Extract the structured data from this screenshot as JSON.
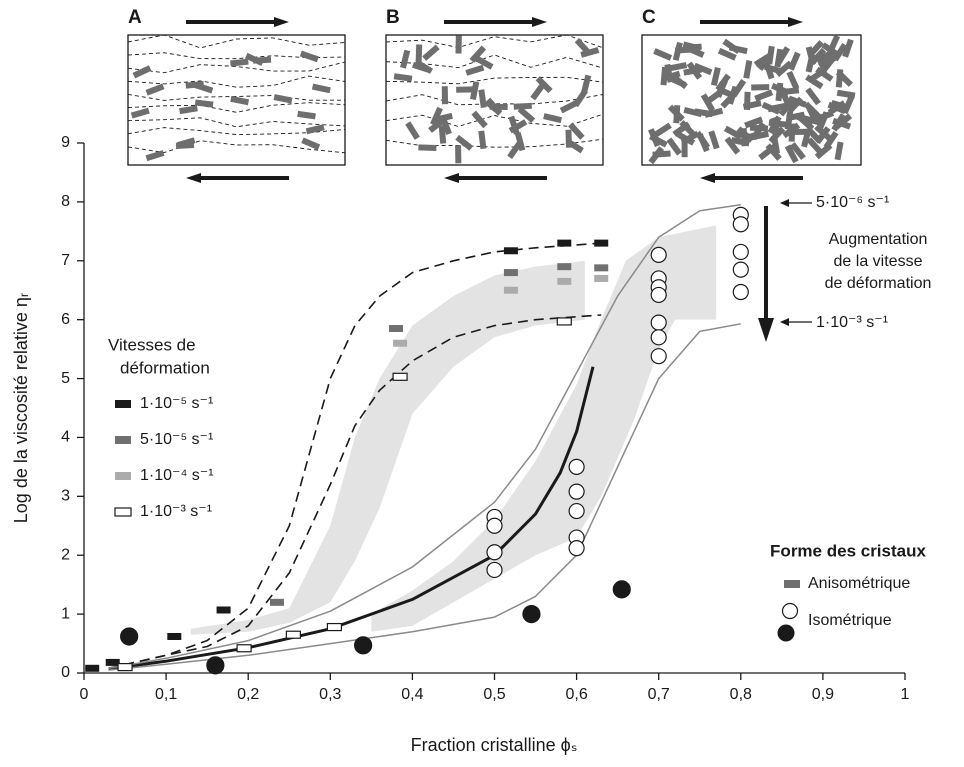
{
  "chart_data": {
    "type": "scatter",
    "x_label": "Fraction cristalline ϕₛ",
    "y_label": "Log de la viscosité relative ηᵣ",
    "xlim": [
      0,
      1
    ],
    "ylim": [
      0,
      9
    ],
    "xticks": [
      0,
      {
        "value": 0.1,
        "label": "0,1"
      },
      {
        "value": 0.2,
        "label": "0,2"
      },
      {
        "value": 0.3,
        "label": "0,3"
      },
      {
        "value": 0.4,
        "label": "0,4"
      },
      {
        "value": 0.5,
        "label": "0,5"
      },
      {
        "value": 0.6,
        "label": "0,6"
      },
      {
        "value": 0.7,
        "label": "0,7"
      },
      {
        "value": 0.8,
        "label": "0,8"
      },
      {
        "value": 0.9,
        "label": "0,9"
      },
      1
    ],
    "yticks": [
      0,
      1,
      2,
      3,
      4,
      5,
      6,
      7,
      8,
      9
    ],
    "rate_legend_title": [
      "Vitesses de",
      "déformation"
    ],
    "series": [
      {
        "name": "1·10⁻⁵ s⁻¹",
        "color": "#1a1a1a",
        "marker": "rect",
        "x": [
          0.01,
          0.035,
          0.11,
          0.17,
          0.52,
          0.585,
          0.63
        ],
        "y": [
          0.08,
          0.18,
          0.62,
          1.07,
          7.17,
          7.3,
          7.3
        ]
      },
      {
        "name": "5·10⁻⁵ s⁻¹",
        "color": "#707070",
        "marker": "rect",
        "x": [
          0.235,
          0.38,
          0.52,
          0.585,
          0.63
        ],
        "y": [
          1.2,
          5.85,
          6.8,
          6.9,
          6.88
        ]
      },
      {
        "name": "1·10⁻⁴ s⁻¹",
        "color": "#ababab",
        "marker": "rect",
        "x": [
          0.385,
          0.52,
          0.585,
          0.63
        ],
        "y": [
          5.6,
          6.5,
          6.65,
          6.7
        ]
      },
      {
        "name": "1·10⁻³ s⁻¹",
        "color": "#ffffff",
        "marker": "rect",
        "x": [
          0.05,
          0.195,
          0.255,
          0.305,
          0.385,
          0.585
        ],
        "y": [
          0.1,
          0.42,
          0.65,
          0.78,
          5.03,
          5.97
        ]
      },
      {
        "color": "#ffffff",
        "marker": "circle",
        "x": [
          0.5,
          0.5,
          0.5,
          0.5,
          0.6,
          0.6,
          0.6,
          0.6,
          0.6,
          0.7,
          0.7,
          0.7,
          0.7,
          0.7,
          0.7,
          0.7,
          0.8,
          0.8,
          0.8,
          0.8,
          0.8
        ],
        "y": [
          2.65,
          2.5,
          2.05,
          1.75,
          3.5,
          3.08,
          2.75,
          2.3,
          2.12,
          7.1,
          6.7,
          6.55,
          6.42,
          5.95,
          5.7,
          5.38,
          7.78,
          7.62,
          7.15,
          6.85,
          6.47
        ]
      },
      {
        "color": "#1a1a1a",
        "marker": "circle",
        "x": [
          0.055,
          0.16,
          0.34,
          0.545,
          0.655
        ],
        "y": [
          0.62,
          0.13,
          0.47,
          1.0,
          1.42
        ]
      }
    ],
    "lines": [
      {
        "style": "dashed",
        "color": "#1a1a1a",
        "x": [
          0.03,
          0.1,
          0.15,
          0.2,
          0.25,
          0.28,
          0.3,
          0.33,
          0.36,
          0.4,
          0.45,
          0.5,
          0.55,
          0.6,
          0.63
        ],
        "y": [
          0.08,
          0.3,
          0.55,
          1.1,
          2.5,
          4,
          5,
          5.9,
          6.4,
          6.8,
          7.0,
          7.15,
          7.22,
          7.27,
          7.3
        ]
      },
      {
        "style": "dashed",
        "color": "#1a1a1a",
        "x": [
          0.03,
          0.1,
          0.15,
          0.2,
          0.25,
          0.3,
          0.33,
          0.36,
          0.4,
          0.45,
          0.5,
          0.55,
          0.6,
          0.63
        ],
        "y": [
          0.08,
          0.3,
          0.45,
          0.8,
          1.7,
          3.2,
          4.2,
          4.8,
          5.3,
          5.7,
          5.9,
          6.0,
          6.05,
          6.08
        ]
      },
      {
        "style": "thick",
        "color": "#1a1a1a",
        "x": [
          0.03,
          0.1,
          0.2,
          0.3,
          0.4,
          0.5,
          0.55,
          0.58,
          0.6,
          0.62
        ],
        "y": [
          0.07,
          0.2,
          0.43,
          0.75,
          1.25,
          2.0,
          2.7,
          3.4,
          4.1,
          5.2
        ]
      },
      {
        "style": "thin",
        "color": "#8a8a8a",
        "x": [
          0.03,
          0.1,
          0.2,
          0.3,
          0.4,
          0.5,
          0.55,
          0.6,
          0.65,
          0.7,
          0.75,
          0.8
        ],
        "y": [
          0.08,
          0.25,
          0.55,
          1.05,
          1.8,
          2.9,
          3.8,
          5.1,
          6.4,
          7.4,
          7.85,
          7.95
        ]
      },
      {
        "style": "thin",
        "color": "#8a8a8a",
        "x": [
          0.03,
          0.1,
          0.2,
          0.3,
          0.4,
          0.5,
          0.55,
          0.6,
          0.65,
          0.7,
          0.75,
          0.8
        ],
        "y": [
          0.05,
          0.15,
          0.3,
          0.5,
          0.7,
          0.95,
          1.3,
          2.0,
          3.5,
          5.0,
          5.8,
          5.93
        ]
      }
    ],
    "shape_legend": {
      "title": "Forme des cristaux",
      "entries": [
        {
          "label": "Anisométrique",
          "color": "#707070"
        },
        {
          "label": "Isométrique"
        }
      ]
    },
    "annotations": {
      "rate_high": "5·10⁻⁶ s⁻¹",
      "rate_low": "1·10⁻³ s⁻¹",
      "increase": [
        "Augmentation",
        "de la vitesse",
        "de déformation"
      ]
    },
    "panels": [
      "A",
      "B",
      "C"
    ]
  }
}
